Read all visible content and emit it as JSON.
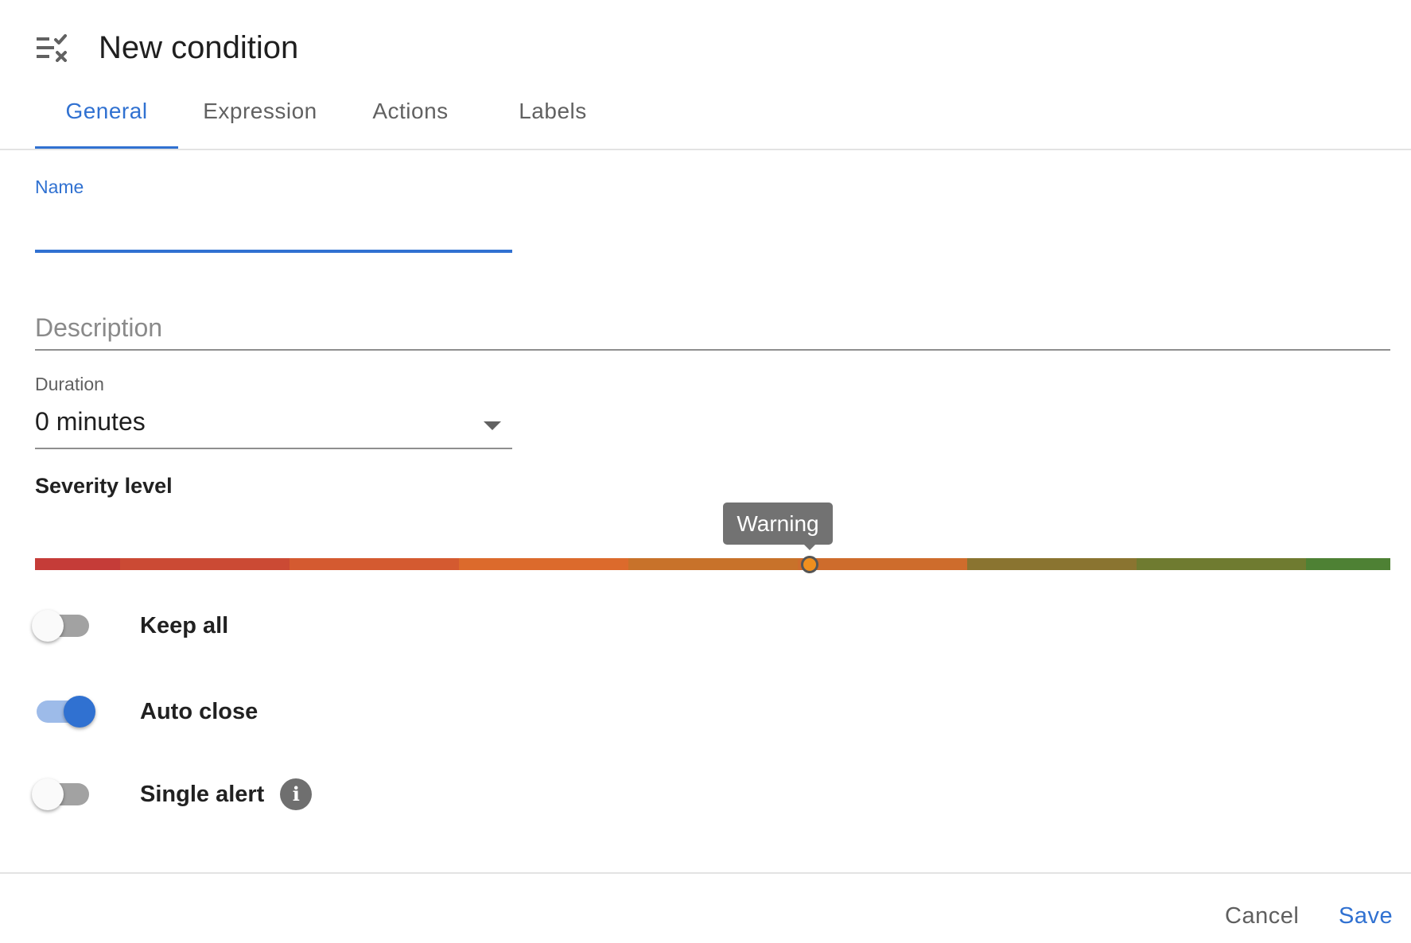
{
  "header": {
    "icon": "rule-checklist-icon",
    "title": "New condition"
  },
  "tabs": [
    {
      "label": "General",
      "active": true
    },
    {
      "label": "Expression",
      "active": false
    },
    {
      "label": "Actions",
      "active": false
    },
    {
      "label": "Labels",
      "active": false
    }
  ],
  "form": {
    "name": {
      "label": "Name",
      "value": ""
    },
    "description": {
      "placeholder": "Description",
      "value": ""
    },
    "duration": {
      "label": "Duration",
      "value": "0 minutes"
    },
    "severity": {
      "title": "Severity level",
      "selected_label": "Warning",
      "level_fraction": 0.571,
      "scale_colors": [
        "#c53c38",
        "#cb4a34",
        "#d45a30",
        "#dc6a2c",
        "#c8722a",
        "#ce6c2c",
        "#8a7430",
        "#6f7b30",
        "#4e8134"
      ]
    },
    "toggles": [
      {
        "label": "Keep all",
        "on": false
      },
      {
        "label": "Auto close",
        "on": true
      },
      {
        "label": "Single alert",
        "on": false,
        "has_info": true
      }
    ]
  },
  "footer": {
    "cancel_label": "Cancel",
    "save_label": "Save"
  },
  "colors": {
    "accent": "#3071d1",
    "tooltip_bg": "#727272"
  }
}
